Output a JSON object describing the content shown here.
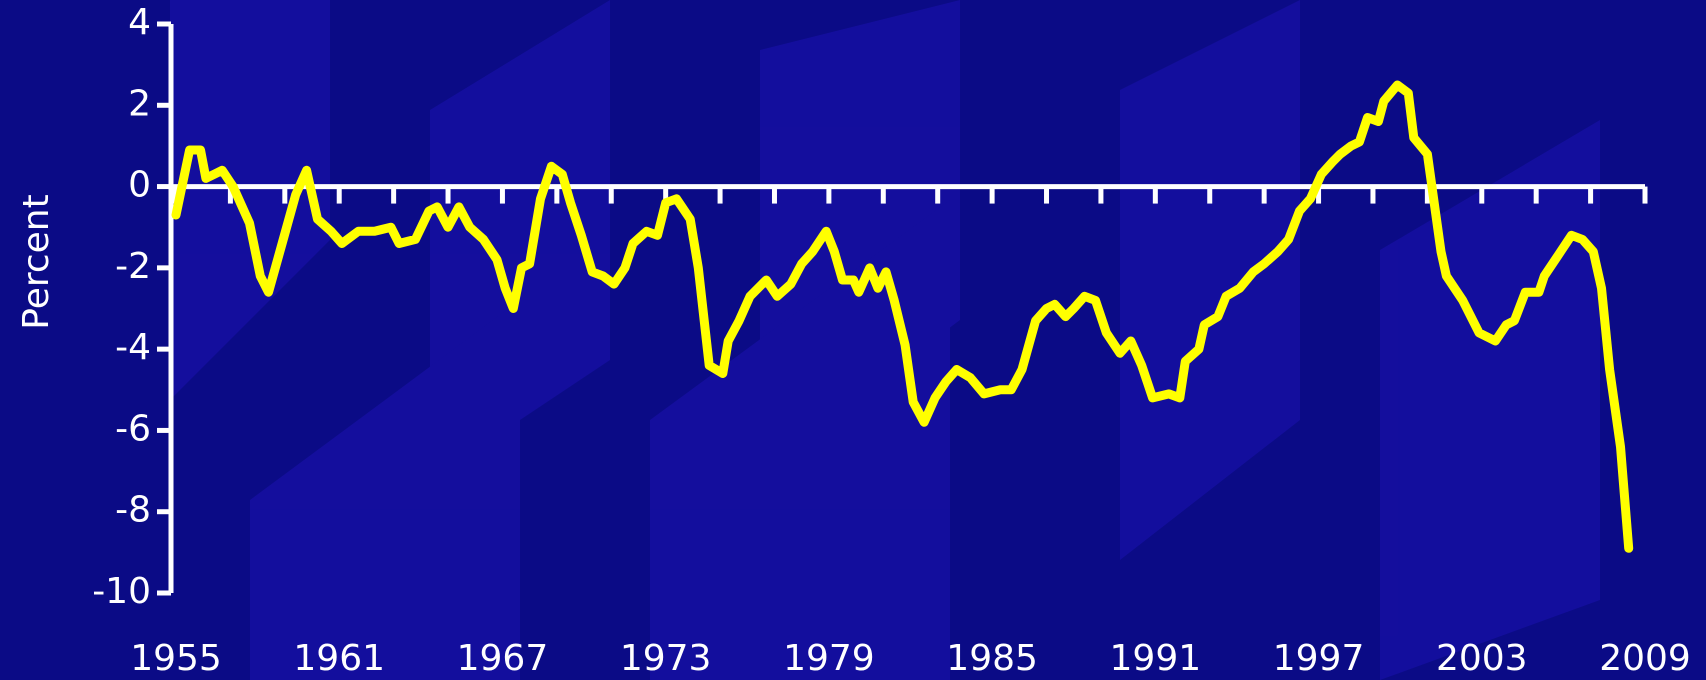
{
  "chart_data": {
    "type": "line",
    "y_label": "Percent",
    "color": "#ffff00",
    "x": [
      1955.0,
      1955.5,
      1955.9,
      1956.1,
      1956.7,
      1957.1,
      1957.7,
      1958.1,
      1958.4,
      1958.9,
      1959.4,
      1959.8,
      1960.2,
      1960.7,
      1961.1,
      1961.7,
      1962.3,
      1962.9,
      1963.2,
      1963.8,
      1964.3,
      1964.6,
      1965.0,
      1965.4,
      1965.8,
      1966.3,
      1966.8,
      1967.1,
      1967.4,
      1967.7,
      1968.0,
      1968.4,
      1968.8,
      1969.2,
      1969.5,
      1969.9,
      1970.3,
      1970.7,
      1971.1,
      1971.5,
      1971.8,
      1972.3,
      1972.7,
      1973.0,
      1973.4,
      1973.9,
      1974.2,
      1974.6,
      1975.1,
      1975.3,
      1975.7,
      1976.1,
      1976.7,
      1977.1,
      1977.6,
      1978.0,
      1978.4,
      1978.9,
      1979.2,
      1979.5,
      1979.9,
      1980.1,
      1980.5,
      1980.8,
      1981.1,
      1981.4,
      1981.8,
      1982.1,
      1982.5,
      1982.9,
      1983.3,
      1983.7,
      1984.2,
      1984.7,
      1985.3,
      1985.7,
      1986.1,
      1986.6,
      1987.0,
      1987.3,
      1987.7,
      1988.0,
      1988.4,
      1988.8,
      1989.2,
      1989.7,
      1990.1,
      1990.5,
      1990.9,
      1991.5,
      1991.9,
      1992.1,
      1992.6,
      1992.8,
      1993.3,
      1993.6,
      1994.1,
      1994.6,
      1995.0,
      1995.5,
      1995.9,
      1996.3,
      1996.7,
      1997.1,
      1997.5,
      1997.8,
      1998.2,
      1998.5,
      1998.8,
      1999.2,
      1999.4,
      1999.9,
      2000.3,
      2000.5,
      2001.0,
      2001.5,
      2001.7,
      2002.3,
      2002.9,
      2003.5,
      2003.9,
      2004.2,
      2004.6,
      2005.1,
      2005.3,
      2005.8,
      2006.3,
      2006.7,
      2007.1,
      2007.4,
      2007.7,
      2008.1,
      2008.4
    ],
    "values": [
      -0.7,
      0.9,
      0.9,
      0.2,
      0.4,
      0.0,
      -0.9,
      -2.2,
      -2.6,
      -1.4,
      -0.2,
      0.4,
      -0.8,
      -1.1,
      -1.4,
      -1.1,
      -1.1,
      -1.0,
      -1.4,
      -1.3,
      -0.6,
      -0.5,
      -1.0,
      -0.5,
      -1.0,
      -1.3,
      -1.8,
      -2.5,
      -3.0,
      -2.0,
      -1.9,
      -0.3,
      0.5,
      0.3,
      -0.4,
      -1.2,
      -2.1,
      -2.2,
      -2.4,
      -2.0,
      -1.4,
      -1.1,
      -1.2,
      -0.4,
      -0.3,
      -0.8,
      -2.0,
      -4.4,
      -4.6,
      -3.8,
      -3.3,
      -2.7,
      -2.3,
      -2.7,
      -2.4,
      -1.9,
      -1.6,
      -1.1,
      -1.6,
      -2.3,
      -2.3,
      -2.6,
      -2.0,
      -2.5,
      -2.1,
      -2.8,
      -3.9,
      -5.3,
      -5.8,
      -5.2,
      -4.8,
      -4.5,
      -4.7,
      -5.1,
      -5.0,
      -5.0,
      -4.5,
      -3.3,
      -3.0,
      -2.9,
      -3.2,
      -3.0,
      -2.7,
      -2.8,
      -3.6,
      -4.1,
      -3.8,
      -4.4,
      -5.2,
      -5.1,
      -5.2,
      -4.3,
      -4.0,
      -3.4,
      -3.2,
      -2.7,
      -2.5,
      -2.1,
      -1.9,
      -1.6,
      -1.3,
      -0.6,
      -0.3,
      0.3,
      0.6,
      0.8,
      1.0,
      1.1,
      1.7,
      1.6,
      2.1,
      2.5,
      2.3,
      1.2,
      0.8,
      -1.6,
      -2.2,
      -2.8,
      -3.6,
      -3.8,
      -3.4,
      -3.3,
      -2.6,
      -2.6,
      -2.2,
      -1.7,
      -1.2,
      -1.3,
      -1.6,
      -2.5,
      -4.5,
      -6.4,
      -8.9
    ],
    "xlim": [
      1955,
      2009
    ],
    "xticks": [
      1955,
      1961,
      1967,
      1973,
      1979,
      1985,
      1991,
      1997,
      2003,
      2009
    ],
    "xminorticks": [
      1955,
      1957,
      1959,
      1961,
      1963,
      1965,
      1967,
      1969,
      1971,
      1973,
      1975,
      1977,
      1979,
      1981,
      1983,
      1985,
      1987,
      1989,
      1991,
      1993,
      1995,
      1997,
      1999,
      2001,
      2003,
      2005,
      2007,
      2009
    ],
    "ylim": [
      -10,
      4
    ],
    "yticks": [
      4,
      2,
      0,
      -2,
      -4,
      -6,
      -8,
      -10
    ]
  }
}
